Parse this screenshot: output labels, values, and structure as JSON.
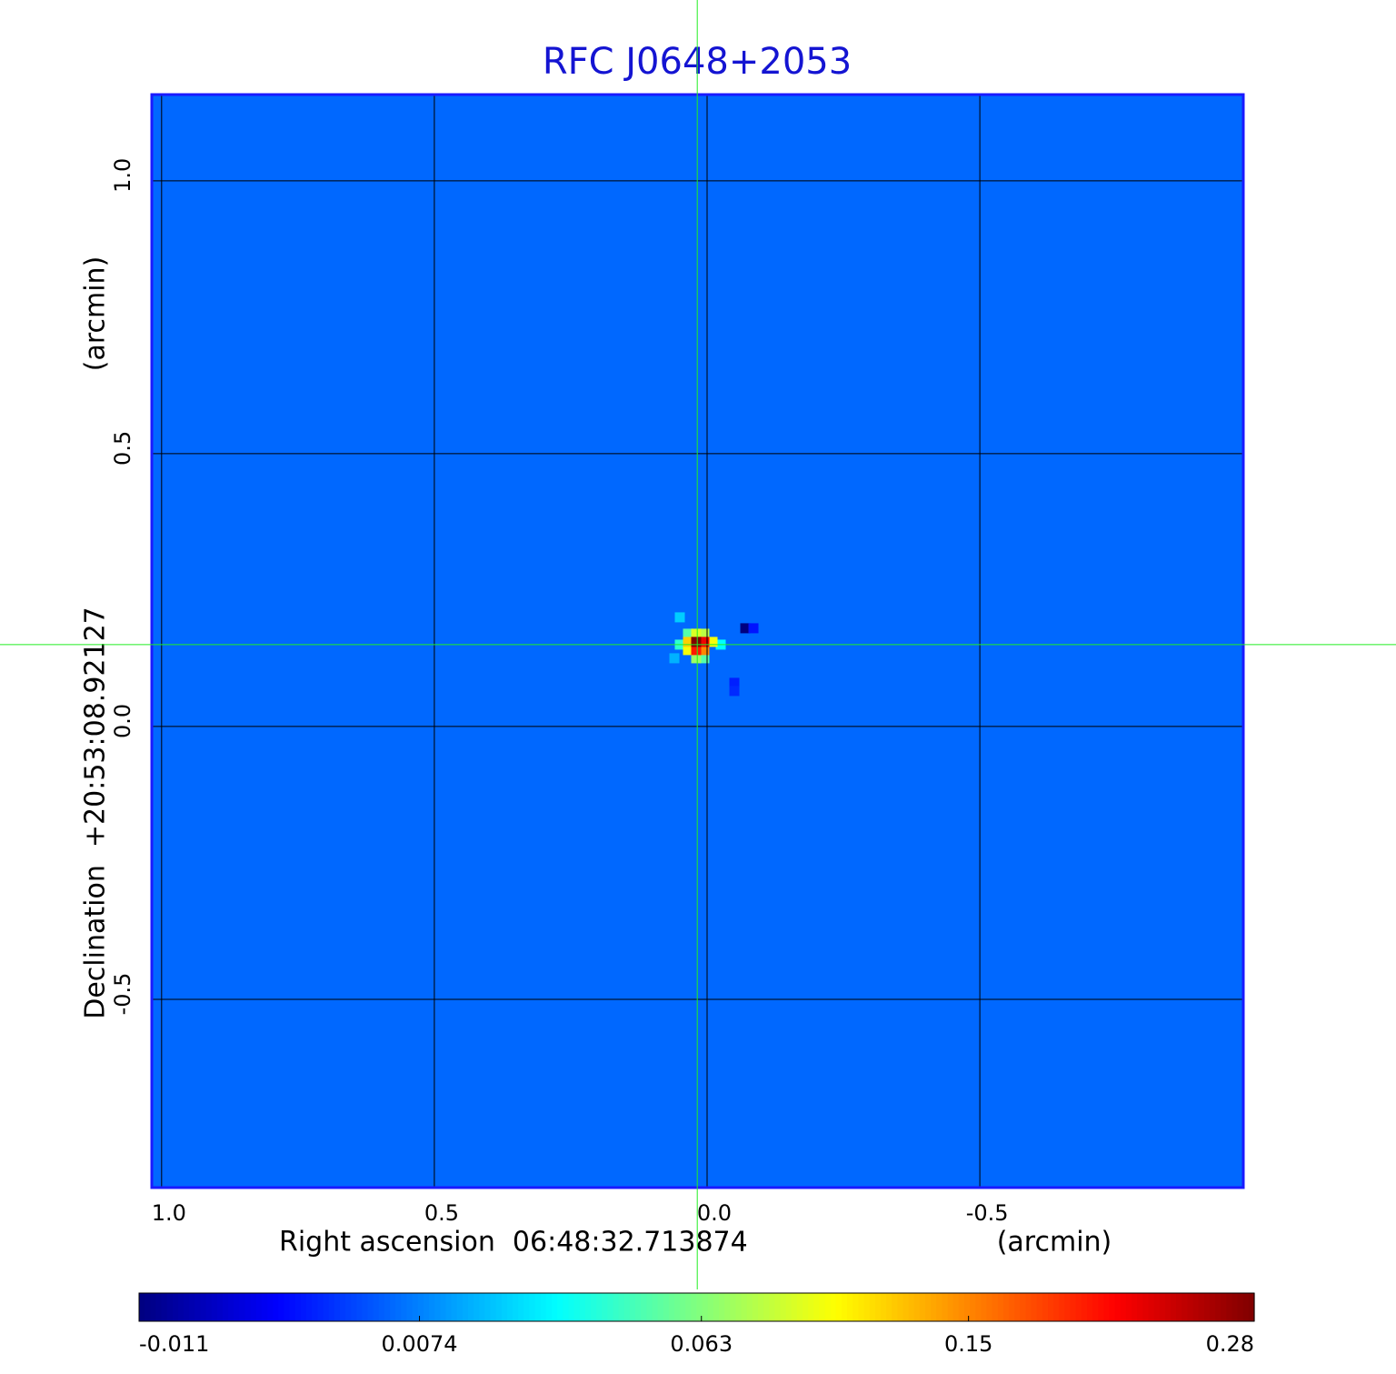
{
  "chart_data": {
    "type": "image",
    "title": "RFC J0648+2053",
    "x_label": "Right ascension  06:48:32.713874",
    "x_unit": "(arcmin)",
    "y_label": "Declination  +20:53:08.92127",
    "y_unit": "(arcmin)",
    "xlim": [
      1.018,
      -0.983
    ],
    "ylim": [
      -0.845,
      1.158
    ],
    "xticks": [
      {
        "value": 1,
        "label": "1.0"
      },
      0.5,
      {
        "value": 0,
        "label": "0.0"
      },
      -0.5
    ],
    "yticks": [
      {
        "value": 1,
        "label": "1.0"
      },
      0.5,
      {
        "value": 0,
        "label": "0.0"
      },
      -0.5
    ],
    "grid": true,
    "colormap": "jet",
    "color_scale": "sqrt",
    "clim": [
      -0.011,
      0.28
    ],
    "colorbar_ticks": [
      -0.011,
      0.0074,
      0.063,
      0.15,
      0.28
    ],
    "background_value": 0.004,
    "crosshair": {
      "x": 0.018,
      "y": 0.15
    },
    "features": [
      {
        "x": 0.05,
        "y": 0.2,
        "value": 0.02
      },
      {
        "x": 0.06,
        "y": 0.125,
        "value": 0.015
      },
      {
        "x": -0.07,
        "y": 0.18,
        "value": -0.011
      },
      {
        "x": -0.085,
        "y": 0.18,
        "value": -0.005
      },
      {
        "x": -0.05,
        "y": 0.08,
        "value": -0.004
      },
      {
        "x": -0.05,
        "y": 0.065,
        "value": -0.003
      },
      {
        "x": -0.025,
        "y": 0.15,
        "value": 0.03
      },
      {
        "x": 0.05,
        "y": 0.15,
        "value": 0.04
      },
      {
        "x": 0.035,
        "y": 0.17,
        "value": 0.05
      },
      {
        "x": 0.005,
        "y": 0.125,
        "value": 0.05
      },
      {
        "x": 0.02,
        "y": 0.125,
        "value": 0.07
      },
      {
        "x": 0.005,
        "y": 0.17,
        "value": 0.08
      },
      {
        "x": 0.02,
        "y": 0.17,
        "value": 0.09
      },
      {
        "x": -0.01,
        "y": 0.155,
        "value": 0.1
      },
      {
        "x": 0.035,
        "y": 0.14,
        "value": 0.1
      },
      {
        "x": 0.035,
        "y": 0.155,
        "value": 0.12
      },
      {
        "x": 0.005,
        "y": 0.14,
        "value": 0.15
      },
      {
        "x": 0.02,
        "y": 0.14,
        "value": 0.2
      },
      {
        "x": 0.005,
        "y": 0.155,
        "value": 0.22
      },
      {
        "x": 0.02,
        "y": 0.155,
        "value": 0.28
      }
    ]
  }
}
